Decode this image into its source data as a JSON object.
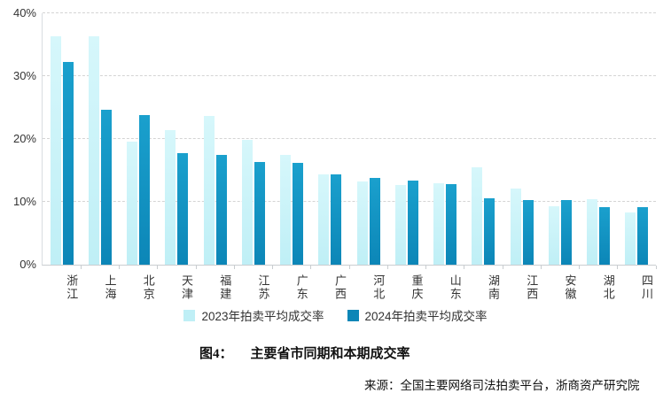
{
  "chart_data": {
    "type": "bar",
    "title": "",
    "categories": [
      "浙江",
      "上海",
      "北京",
      "天津",
      "福建",
      "江苏",
      "广东",
      "广西",
      "河北",
      "重庆",
      "山东",
      "湖南",
      "江西",
      "安徽",
      "湖北",
      "四川"
    ],
    "series": [
      {
        "name": "2023年拍卖平均成交率",
        "key": "2023",
        "color": "#bfeff6",
        "color_top": "#d6f7fb",
        "values": [
          36.4,
          36.4,
          19.6,
          21.4,
          23.7,
          19.8,
          17.5,
          14.4,
          13.2,
          12.7,
          12.9,
          15.5,
          12.1,
          9.3,
          10.4,
          8.3
        ]
      },
      {
        "name": "2024年拍卖平均成交率",
        "key": "2024",
        "color": "#0c86b7",
        "color_top": "#1aa0cd",
        "values": [
          32.2,
          24.6,
          23.8,
          17.7,
          17.4,
          16.3,
          16.2,
          14.3,
          13.8,
          13.4,
          12.8,
          10.5,
          10.3,
          10.3,
          9.2,
          9.2
        ]
      }
    ],
    "xlabel": "",
    "ylabel": "",
    "ylim": [
      0,
      40
    ],
    "yticks": [
      0,
      10,
      20,
      30,
      40
    ],
    "ytick_labels": [
      "0%",
      "10%",
      "20%",
      "30%",
      "40%"
    ],
    "grid": "horizontal-dashed",
    "legend_position": "bottom"
  },
  "caption": {
    "prefix": "图4：",
    "text": "主要省市同期和本期成交率"
  },
  "source": {
    "text": "来源：全国主要网络司法拍卖平台，浙商资产研究院"
  },
  "colors": {
    "gridline": "#d4d4d4",
    "axis": "#c9cdd0",
    "text": "#333333"
  }
}
